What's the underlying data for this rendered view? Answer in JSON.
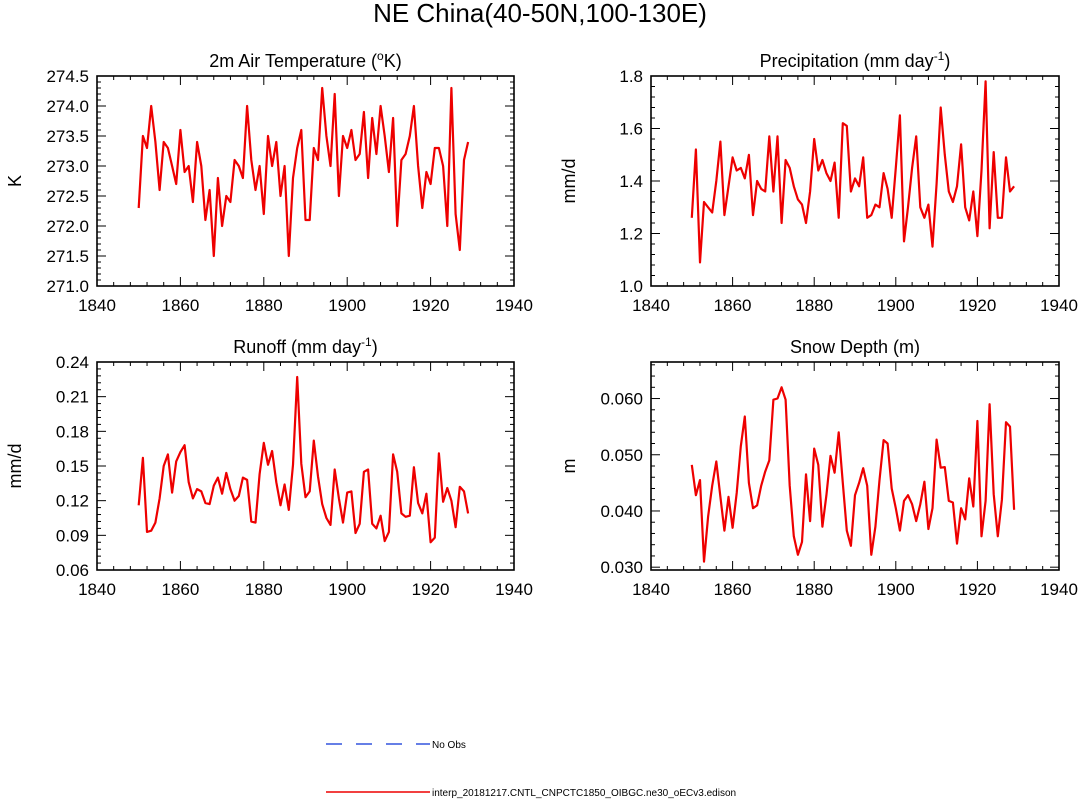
{
  "figure": {
    "title": "NE China(40-50N,100-130E)"
  },
  "legend": {
    "items": [
      {
        "label": "No Obs",
        "color": "#3355dd",
        "style": "dashed"
      },
      {
        "label": "interp_20181217.CNTL_CNPCTC1850_OIBGC.ne30_oECv3.edison",
        "color": "#ee0000",
        "style": "solid"
      }
    ]
  },
  "chart_data": [
    {
      "type": "line",
      "title_prefix": "2m Air Temperature (",
      "title_sup": "o",
      "title_suffix": "K)",
      "xlabel": "",
      "ylabel": "K",
      "xlim": [
        1840,
        1940
      ],
      "ylim": [
        271.0,
        274.5
      ],
      "xticks": [
        1840,
        1860,
        1880,
        1900,
        1920,
        1940
      ],
      "yticks": [
        271.0,
        271.5,
        272.0,
        272.5,
        273.0,
        273.5,
        274.0,
        274.5
      ],
      "ytick_decimals": 1,
      "series": [
        {
          "name": "interp_20181217.CNTL_CNPCTC1850_OIBGC.ne30_oECv3.edison",
          "color": "#ee0000",
          "x": [
            1850,
            1851,
            1852,
            1853,
            1854,
            1855,
            1856,
            1857,
            1858,
            1859,
            1860,
            1861,
            1862,
            1863,
            1864,
            1865,
            1866,
            1867,
            1868,
            1869,
            1870,
            1871,
            1872,
            1873,
            1874,
            1875,
            1876,
            1877,
            1878,
            1879,
            1880,
            1881,
            1882,
            1883,
            1884,
            1885,
            1886,
            1887,
            1888,
            1889,
            1890,
            1891,
            1892,
            1893,
            1894,
            1895,
            1896,
            1897,
            1898,
            1899,
            1900,
            1901,
            1902,
            1903,
            1904,
            1905,
            1906,
            1907,
            1908,
            1909,
            1910,
            1911,
            1912,
            1913,
            1914,
            1915,
            1916,
            1917,
            1918,
            1919,
            1920,
            1921,
            1922,
            1923,
            1924,
            1925,
            1926,
            1927,
            1928,
            1929
          ],
          "values": [
            272.3,
            273.5,
            273.3,
            274.0,
            273.4,
            272.6,
            273.4,
            273.3,
            273.0,
            272.7,
            273.6,
            272.9,
            273.0,
            272.4,
            273.4,
            273.0,
            272.1,
            272.6,
            271.5,
            272.8,
            272.0,
            272.5,
            272.4,
            273.1,
            273.0,
            272.8,
            274.0,
            273.1,
            272.6,
            273.0,
            272.2,
            273.5,
            273.0,
            273.4,
            272.5,
            273.0,
            271.5,
            272.8,
            273.3,
            273.6,
            272.1,
            272.1,
            273.3,
            273.1,
            274.3,
            273.5,
            273.0,
            274.2,
            272.5,
            273.5,
            273.3,
            273.6,
            273.1,
            273.2,
            273.9,
            272.8,
            273.8,
            273.2,
            274.0,
            273.5,
            272.9,
            273.8,
            272.0,
            273.1,
            273.2,
            273.5,
            274.0,
            273.0,
            272.3,
            272.9,
            272.7,
            273.3,
            273.3,
            273.0,
            272.0,
            274.3,
            272.2,
            271.6,
            273.1,
            273.4
          ]
        }
      ]
    },
    {
      "type": "line",
      "title_prefix": "Precipitation (mm day",
      "title_sup": "-1",
      "title_suffix": ")",
      "xlabel": "",
      "ylabel": "mm/d",
      "xlim": [
        1840,
        1940
      ],
      "ylim": [
        1.0,
        1.8
      ],
      "xticks": [
        1840,
        1860,
        1880,
        1900,
        1920,
        1940
      ],
      "yticks": [
        1.0,
        1.2,
        1.4,
        1.6,
        1.8
      ],
      "ytick_decimals": 1,
      "series": [
        {
          "name": "interp_20181217.CNTL_CNPCTC1850_OIBGC.ne30_oECv3.edison",
          "color": "#ee0000",
          "x": [
            1850,
            1851,
            1852,
            1853,
            1854,
            1855,
            1856,
            1857,
            1858,
            1859,
            1860,
            1861,
            1862,
            1863,
            1864,
            1865,
            1866,
            1867,
            1868,
            1869,
            1870,
            1871,
            1872,
            1873,
            1874,
            1875,
            1876,
            1877,
            1878,
            1879,
            1880,
            1881,
            1882,
            1883,
            1884,
            1885,
            1886,
            1887,
            1888,
            1889,
            1890,
            1891,
            1892,
            1893,
            1894,
            1895,
            1896,
            1897,
            1898,
            1899,
            1900,
            1901,
            1902,
            1903,
            1904,
            1905,
            1906,
            1907,
            1908,
            1909,
            1910,
            1911,
            1912,
            1913,
            1914,
            1915,
            1916,
            1917,
            1918,
            1919,
            1920,
            1921,
            1922,
            1923,
            1924,
            1925,
            1926,
            1927,
            1928,
            1929
          ],
          "values": [
            1.26,
            1.52,
            1.09,
            1.32,
            1.3,
            1.28,
            1.4,
            1.55,
            1.27,
            1.38,
            1.49,
            1.44,
            1.45,
            1.41,
            1.5,
            1.27,
            1.4,
            1.37,
            1.36,
            1.57,
            1.36,
            1.57,
            1.24,
            1.48,
            1.45,
            1.38,
            1.33,
            1.31,
            1.24,
            1.36,
            1.56,
            1.44,
            1.48,
            1.43,
            1.4,
            1.47,
            1.26,
            1.62,
            1.61,
            1.36,
            1.41,
            1.38,
            1.49,
            1.26,
            1.27,
            1.31,
            1.3,
            1.43,
            1.37,
            1.26,
            1.45,
            1.65,
            1.17,
            1.3,
            1.45,
            1.57,
            1.3,
            1.26,
            1.31,
            1.15,
            1.39,
            1.68,
            1.5,
            1.36,
            1.32,
            1.38,
            1.54,
            1.3,
            1.25,
            1.36,
            1.19,
            1.44,
            1.78,
            1.22,
            1.51,
            1.26,
            1.26,
            1.49,
            1.36,
            1.38
          ]
        }
      ]
    },
    {
      "type": "line",
      "title_prefix": "Runoff (mm day",
      "title_sup": "-1",
      "title_suffix": ")",
      "xlabel": "",
      "ylabel": "mm/d",
      "xlim": [
        1840,
        1940
      ],
      "ylim": [
        0.06,
        0.24
      ],
      "xticks": [
        1840,
        1860,
        1880,
        1900,
        1920,
        1940
      ],
      "yticks": [
        0.06,
        0.09,
        0.12,
        0.15,
        0.18,
        0.21,
        0.24
      ],
      "ytick_decimals": 2,
      "series": [
        {
          "name": "interp_20181217.CNTL_CNPCTC1850_OIBGC.ne30_oECv3.edison",
          "color": "#ee0000",
          "x": [
            1850,
            1851,
            1852,
            1853,
            1854,
            1855,
            1856,
            1857,
            1858,
            1859,
            1860,
            1861,
            1862,
            1863,
            1864,
            1865,
            1866,
            1867,
            1868,
            1869,
            1870,
            1871,
            1872,
            1873,
            1874,
            1875,
            1876,
            1877,
            1878,
            1879,
            1880,
            1881,
            1882,
            1883,
            1884,
            1885,
            1886,
            1887,
            1888,
            1889,
            1890,
            1891,
            1892,
            1893,
            1894,
            1895,
            1896,
            1897,
            1898,
            1899,
            1900,
            1901,
            1902,
            1903,
            1904,
            1905,
            1906,
            1907,
            1908,
            1909,
            1910,
            1911,
            1912,
            1913,
            1914,
            1915,
            1916,
            1917,
            1918,
            1919,
            1920,
            1921,
            1922,
            1923,
            1924,
            1925,
            1926,
            1927,
            1928,
            1929
          ],
          "values": [
            0.116,
            0.157,
            0.093,
            0.094,
            0.101,
            0.122,
            0.15,
            0.16,
            0.127,
            0.154,
            0.162,
            0.168,
            0.136,
            0.122,
            0.13,
            0.128,
            0.118,
            0.117,
            0.133,
            0.14,
            0.126,
            0.144,
            0.13,
            0.12,
            0.124,
            0.14,
            0.138,
            0.102,
            0.101,
            0.143,
            0.17,
            0.151,
            0.163,
            0.136,
            0.116,
            0.134,
            0.112,
            0.151,
            0.227,
            0.152,
            0.123,
            0.128,
            0.172,
            0.141,
            0.117,
            0.105,
            0.099,
            0.147,
            0.122,
            0.101,
            0.127,
            0.128,
            0.092,
            0.1,
            0.145,
            0.147,
            0.1,
            0.096,
            0.107,
            0.085,
            0.093,
            0.16,
            0.145,
            0.109,
            0.106,
            0.107,
            0.149,
            0.118,
            0.109,
            0.126,
            0.084,
            0.088,
            0.161,
            0.119,
            0.131,
            0.12,
            0.097,
            0.132,
            0.128,
            0.109
          ]
        }
      ]
    },
    {
      "type": "line",
      "title_prefix": "Snow Depth (m)",
      "title_sup": "",
      "title_suffix": "",
      "xlabel": "",
      "ylabel": "m",
      "xlim": [
        1840,
        1940
      ],
      "ylim": [
        0.0295,
        0.0665
      ],
      "xticks": [
        1840,
        1860,
        1880,
        1900,
        1920,
        1940
      ],
      "yticks": [
        0.03,
        0.04,
        0.05,
        0.06
      ],
      "ytick_decimals": 3,
      "series": [
        {
          "name": "interp_20181217.CNTL_CNPCTC1850_OIBGC.ne30_oECv3.edison",
          "color": "#ee0000",
          "x": [
            1850,
            1851,
            1852,
            1853,
            1854,
            1855,
            1856,
            1857,
            1858,
            1859,
            1860,
            1861,
            1862,
            1863,
            1864,
            1865,
            1866,
            1867,
            1868,
            1869,
            1870,
            1871,
            1872,
            1873,
            1874,
            1875,
            1876,
            1877,
            1878,
            1879,
            1880,
            1881,
            1882,
            1883,
            1884,
            1885,
            1886,
            1887,
            1888,
            1889,
            1890,
            1891,
            1892,
            1893,
            1894,
            1895,
            1896,
            1897,
            1898,
            1899,
            1900,
            1901,
            1902,
            1903,
            1904,
            1905,
            1906,
            1907,
            1908,
            1909,
            1910,
            1911,
            1912,
            1913,
            1914,
            1915,
            1916,
            1917,
            1918,
            1919,
            1920,
            1921,
            1922,
            1923,
            1924,
            1925,
            1926,
            1927,
            1928,
            1929
          ],
          "values": [
            0.0482,
            0.0428,
            0.0455,
            0.031,
            0.039,
            0.0445,
            0.0488,
            0.0425,
            0.0365,
            0.0425,
            0.037,
            0.0432,
            0.0515,
            0.0568,
            0.045,
            0.0405,
            0.041,
            0.0445,
            0.047,
            0.049,
            0.0598,
            0.06,
            0.062,
            0.0598,
            0.0445,
            0.0355,
            0.0322,
            0.0345,
            0.0465,
            0.0382,
            0.0511,
            0.0482,
            0.0372,
            0.0428,
            0.0498,
            0.0468,
            0.054,
            0.045,
            0.0365,
            0.0338,
            0.0428,
            0.045,
            0.0476,
            0.0445,
            0.0322,
            0.0372,
            0.0455,
            0.0526,
            0.052,
            0.044,
            0.0405,
            0.0365,
            0.0418,
            0.0428,
            0.0412,
            0.0382,
            0.0412,
            0.0452,
            0.0368,
            0.0405,
            0.0527,
            0.0477,
            0.0478,
            0.0418,
            0.0415,
            0.0342,
            0.0405,
            0.0385,
            0.0458,
            0.0408,
            0.056,
            0.0355,
            0.0418,
            0.059,
            0.043,
            0.0355,
            0.042,
            0.0558,
            0.055,
            0.0402
          ]
        }
      ]
    }
  ]
}
